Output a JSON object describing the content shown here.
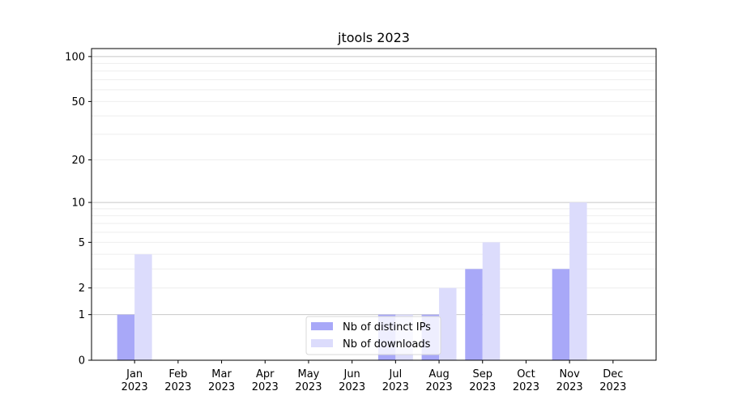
{
  "chart_data": {
    "type": "bar",
    "title": "jtools 2023",
    "xlabel": "",
    "ylabel": "",
    "categories": [
      "Jan\n2023",
      "Feb\n2023",
      "Mar\n2023",
      "Apr\n2023",
      "May\n2023",
      "Jun\n2023",
      "Jul\n2023",
      "Aug\n2023",
      "Sep\n2023",
      "Oct\n2023",
      "Nov\n2023",
      "Dec\n2023"
    ],
    "series": [
      {
        "name": "Nb of distinct IPs",
        "color": "#a8a8f8",
        "values": [
          1,
          0,
          0,
          0,
          0,
          0,
          1,
          1,
          3,
          0,
          3,
          0
        ]
      },
      {
        "name": "Nb of downloads",
        "color": "#dcdcfc",
        "values": [
          4,
          0,
          0,
          0,
          0,
          0,
          1,
          2,
          5,
          0,
          10,
          0
        ]
      }
    ],
    "yscale": "log(1+y)",
    "ylim": [
      0,
      113
    ],
    "yticks": [
      0,
      1,
      2,
      5,
      10,
      20,
      50,
      100
    ],
    "ytick_labels": [
      "0",
      "1",
      "2",
      "5",
      "10",
      "20",
      "50",
      "100"
    ],
    "grid": true,
    "legend": "bottom-center"
  }
}
